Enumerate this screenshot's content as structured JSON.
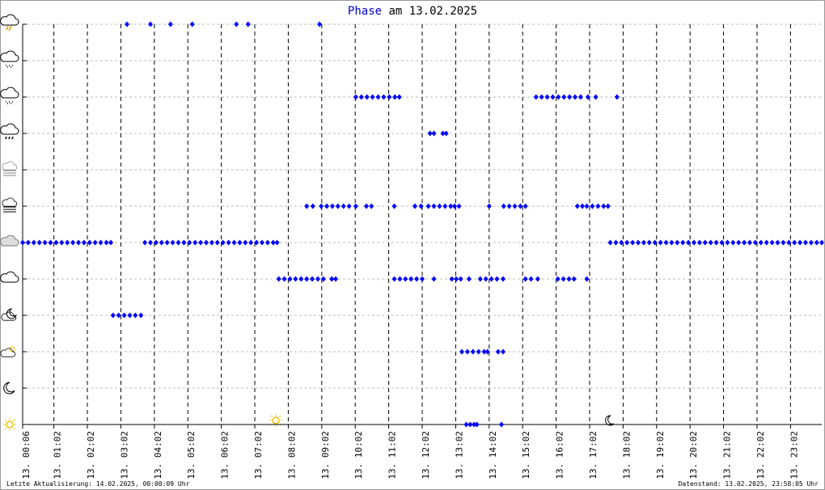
{
  "chart_data": {
    "type": "scatter",
    "title_param": "Phase",
    "title": "am 13.02.2025",
    "footer_left": "Letzte Aktualisierung: 14.02.2025, 00:00:09 Uhr",
    "footer_right": "Datenstand: 13.02.2025, 23:58:05 Uhr",
    "xlim": [
      6,
      1438
    ],
    "xticks": [
      {
        "value": 6,
        "label": "13. 00:06"
      },
      {
        "value": 62,
        "label": "13. 01:02"
      },
      {
        "value": 122,
        "label": "13. 02:02"
      },
      {
        "value": 182,
        "label": "13. 03:02"
      },
      {
        "value": 242,
        "label": "13. 04:02"
      },
      {
        "value": 302,
        "label": "13. 05:02"
      },
      {
        "value": 362,
        "label": "13. 06:02"
      },
      {
        "value": 422,
        "label": "13. 07:02"
      },
      {
        "value": 482,
        "label": "13. 08:02"
      },
      {
        "value": 542,
        "label": "13. 09:02"
      },
      {
        "value": 602,
        "label": "13. 10:02"
      },
      {
        "value": 662,
        "label": "13. 11:02"
      },
      {
        "value": 722,
        "label": "13. 12:02"
      },
      {
        "value": 782,
        "label": "13. 13:02"
      },
      {
        "value": 842,
        "label": "13. 14:02"
      },
      {
        "value": 902,
        "label": "13. 15:02"
      },
      {
        "value": 962,
        "label": "13. 16:02"
      },
      {
        "value": 1022,
        "label": "13. 17:02"
      },
      {
        "value": 1082,
        "label": "13. 18:02"
      },
      {
        "value": 1142,
        "label": "13. 19:02"
      },
      {
        "value": 1202,
        "label": "13. 20:02"
      },
      {
        "value": 1262,
        "label": "13. 21:02"
      },
      {
        "value": 1322,
        "label": "13. 22:02"
      },
      {
        "value": 1382,
        "label": "13. 23:02"
      }
    ],
    "ylim": [
      0,
      11
    ],
    "yticks": [
      0,
      1,
      2,
      3,
      4,
      5,
      6,
      7,
      8,
      9,
      10,
      11
    ],
    "grid": true,
    "series": [
      {
        "color": "#0000ff",
        "x": [
          6,
          16,
          26,
          36,
          46,
          56,
          66,
          76,
          86,
          96,
          106,
          116,
          126,
          136,
          146,
          156,
          164,
          168,
          178,
          188,
          198,
          208,
          218,
          193,
          235,
          271,
          310,
          389,
          410,
          538,
          225,
          235,
          245,
          255,
          265,
          275,
          285,
          295,
          305,
          315,
          325,
          335,
          345,
          355,
          365,
          375,
          385,
          395,
          405,
          415,
          425,
          435,
          445,
          455,
          462,
          465,
          475,
          485,
          495,
          505,
          515,
          525,
          535,
          545,
          560,
          567,
          515,
          526,
          541,
          551,
          561,
          571,
          581,
          591,
          603,
          622,
          631,
          672,
          709,
          720,
          733,
          743,
          753,
          763,
          773,
          780,
          788,
          842,
          868,
          878,
          888,
          898,
          907,
          1000,
          1009,
          1017,
          1027,
          1037,
          1047,
          1055,
          603,
          613,
          623,
          633,
          643,
          653,
          663,
          673,
          681,
          926,
          936,
          946,
          956,
          966,
          976,
          986,
          996,
          1006,
          1019,
          1033,
          1071,
          736,
          743,
          759,
          765,
          672,
          682,
          692,
          702,
          712,
          722,
          743,
          775,
          783,
          791,
          806,
          826,
          836,
          846,
          856,
          867,
          907,
          917,
          929,
          965,
          975,
          985,
          994,
          1017,
          793,
          803,
          813,
          823,
          833,
          839,
          858,
          867,
          801,
          808,
          815,
          820,
          864,
          1059,
          1069,
          1079,
          1089,
          1099,
          1109,
          1119,
          1129,
          1139,
          1149,
          1159,
          1169,
          1179,
          1189,
          1199,
          1209,
          1219,
          1229,
          1239,
          1249,
          1259,
          1269,
          1279,
          1289,
          1299,
          1309,
          1319,
          1329,
          1339,
          1349,
          1359,
          1369,
          1379,
          1389,
          1399,
          1409,
          1419,
          1429,
          1438
        ],
        "values": [
          5,
          5,
          5,
          5,
          5,
          5,
          5,
          5,
          5,
          5,
          5,
          5,
          5,
          5,
          5,
          5,
          5,
          3,
          3,
          3,
          3,
          3,
          3,
          11,
          11,
          11,
          11,
          11,
          11,
          11,
          5,
          5,
          5,
          5,
          5,
          5,
          5,
          5,
          5,
          5,
          5,
          5,
          5,
          5,
          5,
          5,
          5,
          5,
          5,
          5,
          5,
          5,
          5,
          5,
          5,
          4,
          4,
          4,
          4,
          4,
          4,
          4,
          4,
          4,
          4,
          4,
          6,
          6,
          6,
          6,
          6,
          6,
          6,
          6,
          6,
          6,
          6,
          6,
          6,
          6,
          6,
          6,
          6,
          6,
          6,
          6,
          6,
          6,
          6,
          6,
          6,
          6,
          6,
          6,
          6,
          6,
          6,
          6,
          6,
          6,
          9,
          9,
          9,
          9,
          9,
          9,
          9,
          9,
          9,
          9,
          9,
          9,
          9,
          9,
          9,
          9,
          9,
          9,
          9,
          9,
          9,
          8,
          8,
          8,
          8,
          4,
          4,
          4,
          4,
          4,
          4,
          4,
          4,
          4,
          4,
          4,
          4,
          4,
          4,
          4,
          4,
          4,
          4,
          4,
          4,
          4,
          4,
          4,
          4,
          2,
          2,
          2,
          2,
          2,
          2,
          2,
          2,
          0,
          0,
          0,
          0,
          0,
          5,
          5,
          5,
          5,
          5,
          5,
          5,
          5,
          5,
          5,
          5,
          5,
          5,
          5,
          5,
          5,
          5,
          5,
          5,
          5,
          5,
          5,
          5,
          5,
          5,
          5,
          5,
          5,
          5,
          5,
          5,
          5,
          5,
          5,
          5,
          5,
          5,
          5,
          5
        ]
      }
    ]
  }
}
